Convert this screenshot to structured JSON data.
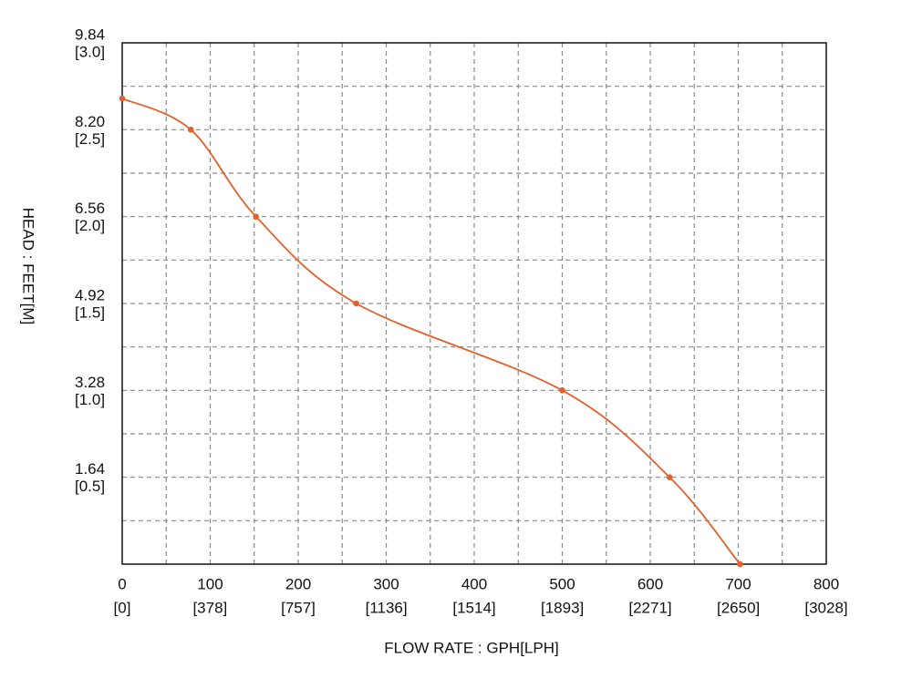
{
  "chart_data": {
    "type": "line",
    "xlabel": "FLOW RATE : GPH[LPH]",
    "ylabel": "HEAD : FEET[M]",
    "x": [
      0,
      78,
      152,
      266,
      500,
      622,
      702
    ],
    "series": [
      {
        "color": "#e2602b",
        "values": [
          8.79,
          8.2,
          6.56,
          4.92,
          3.28,
          1.64,
          0
        ]
      }
    ],
    "xlim": [
      0,
      800
    ],
    "xticks": [
      0,
      100,
      200,
      300,
      400,
      500,
      600,
      700,
      800
    ],
    "xminorticks": [
      50,
      150,
      250,
      350,
      450,
      550,
      650,
      750
    ],
    "x2lim": [
      0,
      3028
    ],
    "x2ticks": [
      {
        "value": 0,
        "label": "[0]"
      },
      {
        "value": 378,
        "label": "[378]"
      },
      {
        "value": 757,
        "label": "[757]"
      },
      {
        "value": 1136,
        "label": "[1136]"
      },
      {
        "value": 1514,
        "label": "[1514]"
      },
      {
        "value": 1893,
        "label": "[1893]"
      },
      {
        "value": 2271,
        "label": "[2271]"
      },
      {
        "value": 2650,
        "label": "[2650]"
      },
      {
        "value": 3028,
        "label": "[3028]"
      }
    ],
    "ylim": [
      0,
      9.84
    ],
    "yticks": [
      1.64,
      3.28,
      4.92,
      6.56,
      {
        "value": 8.2,
        "label": "8.20"
      },
      9.84
    ],
    "yminorticks": [
      0.82,
      2.46,
      4.1,
      5.74,
      7.38,
      9.02
    ],
    "y2lim": [
      0,
      3.0
    ],
    "y2ticks": [
      {
        "value": 0.5,
        "label": "[0.5]"
      },
      {
        "value": 1.0,
        "label": "[1.0]"
      },
      {
        "value": 1.5,
        "label": "[1.5]"
      },
      {
        "value": 2.0,
        "label": "[2.0]"
      },
      {
        "value": 2.5,
        "label": "[2.5]"
      },
      {
        "value": 3.0,
        "label": "[3.0]"
      }
    ],
    "grid": true
  }
}
